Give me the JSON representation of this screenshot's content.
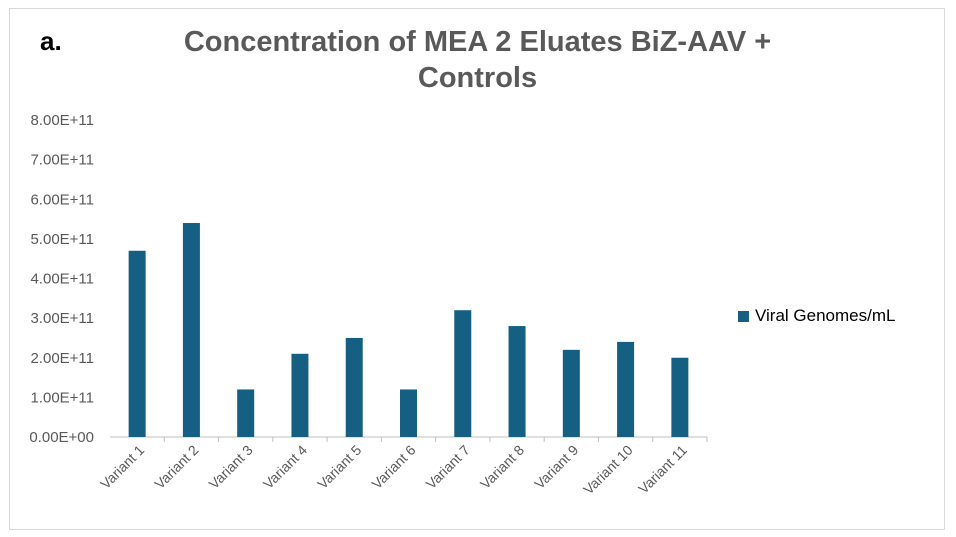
{
  "panel_label": "a.",
  "chart_data": {
    "type": "bar",
    "title": "Concentration of MEA 2 Eluates BiZ-AAV + Controls",
    "categories": [
      "Variant 1",
      "Variant 2",
      "Variant 3",
      "Variant 4",
      "Variant 5",
      "Variant 6",
      "Variant 7",
      "Variant 8",
      "Variant 9",
      "Variant 10",
      "Variant 11"
    ],
    "series": [
      {
        "name": "Viral Genomes/mL",
        "values": [
          470000000000.0,
          540000000000.0,
          120000000000.0,
          210000000000.0,
          250000000000.0,
          120000000000.0,
          320000000000.0,
          280000000000.0,
          220000000000.0,
          240000000000.0,
          200000000000.0
        ]
      }
    ],
    "ylim": [
      0,
      800000000000.0
    ],
    "yticks": [
      "0.00E+00",
      "1.00E+11",
      "2.00E+11",
      "3.00E+11",
      "4.00E+11",
      "5.00E+11",
      "6.00E+11",
      "7.00E+11",
      "8.00E+11"
    ],
    "xlabel": "",
    "ylabel": "",
    "grid": false,
    "legend_position": "right",
    "bar_color": "#156082"
  }
}
